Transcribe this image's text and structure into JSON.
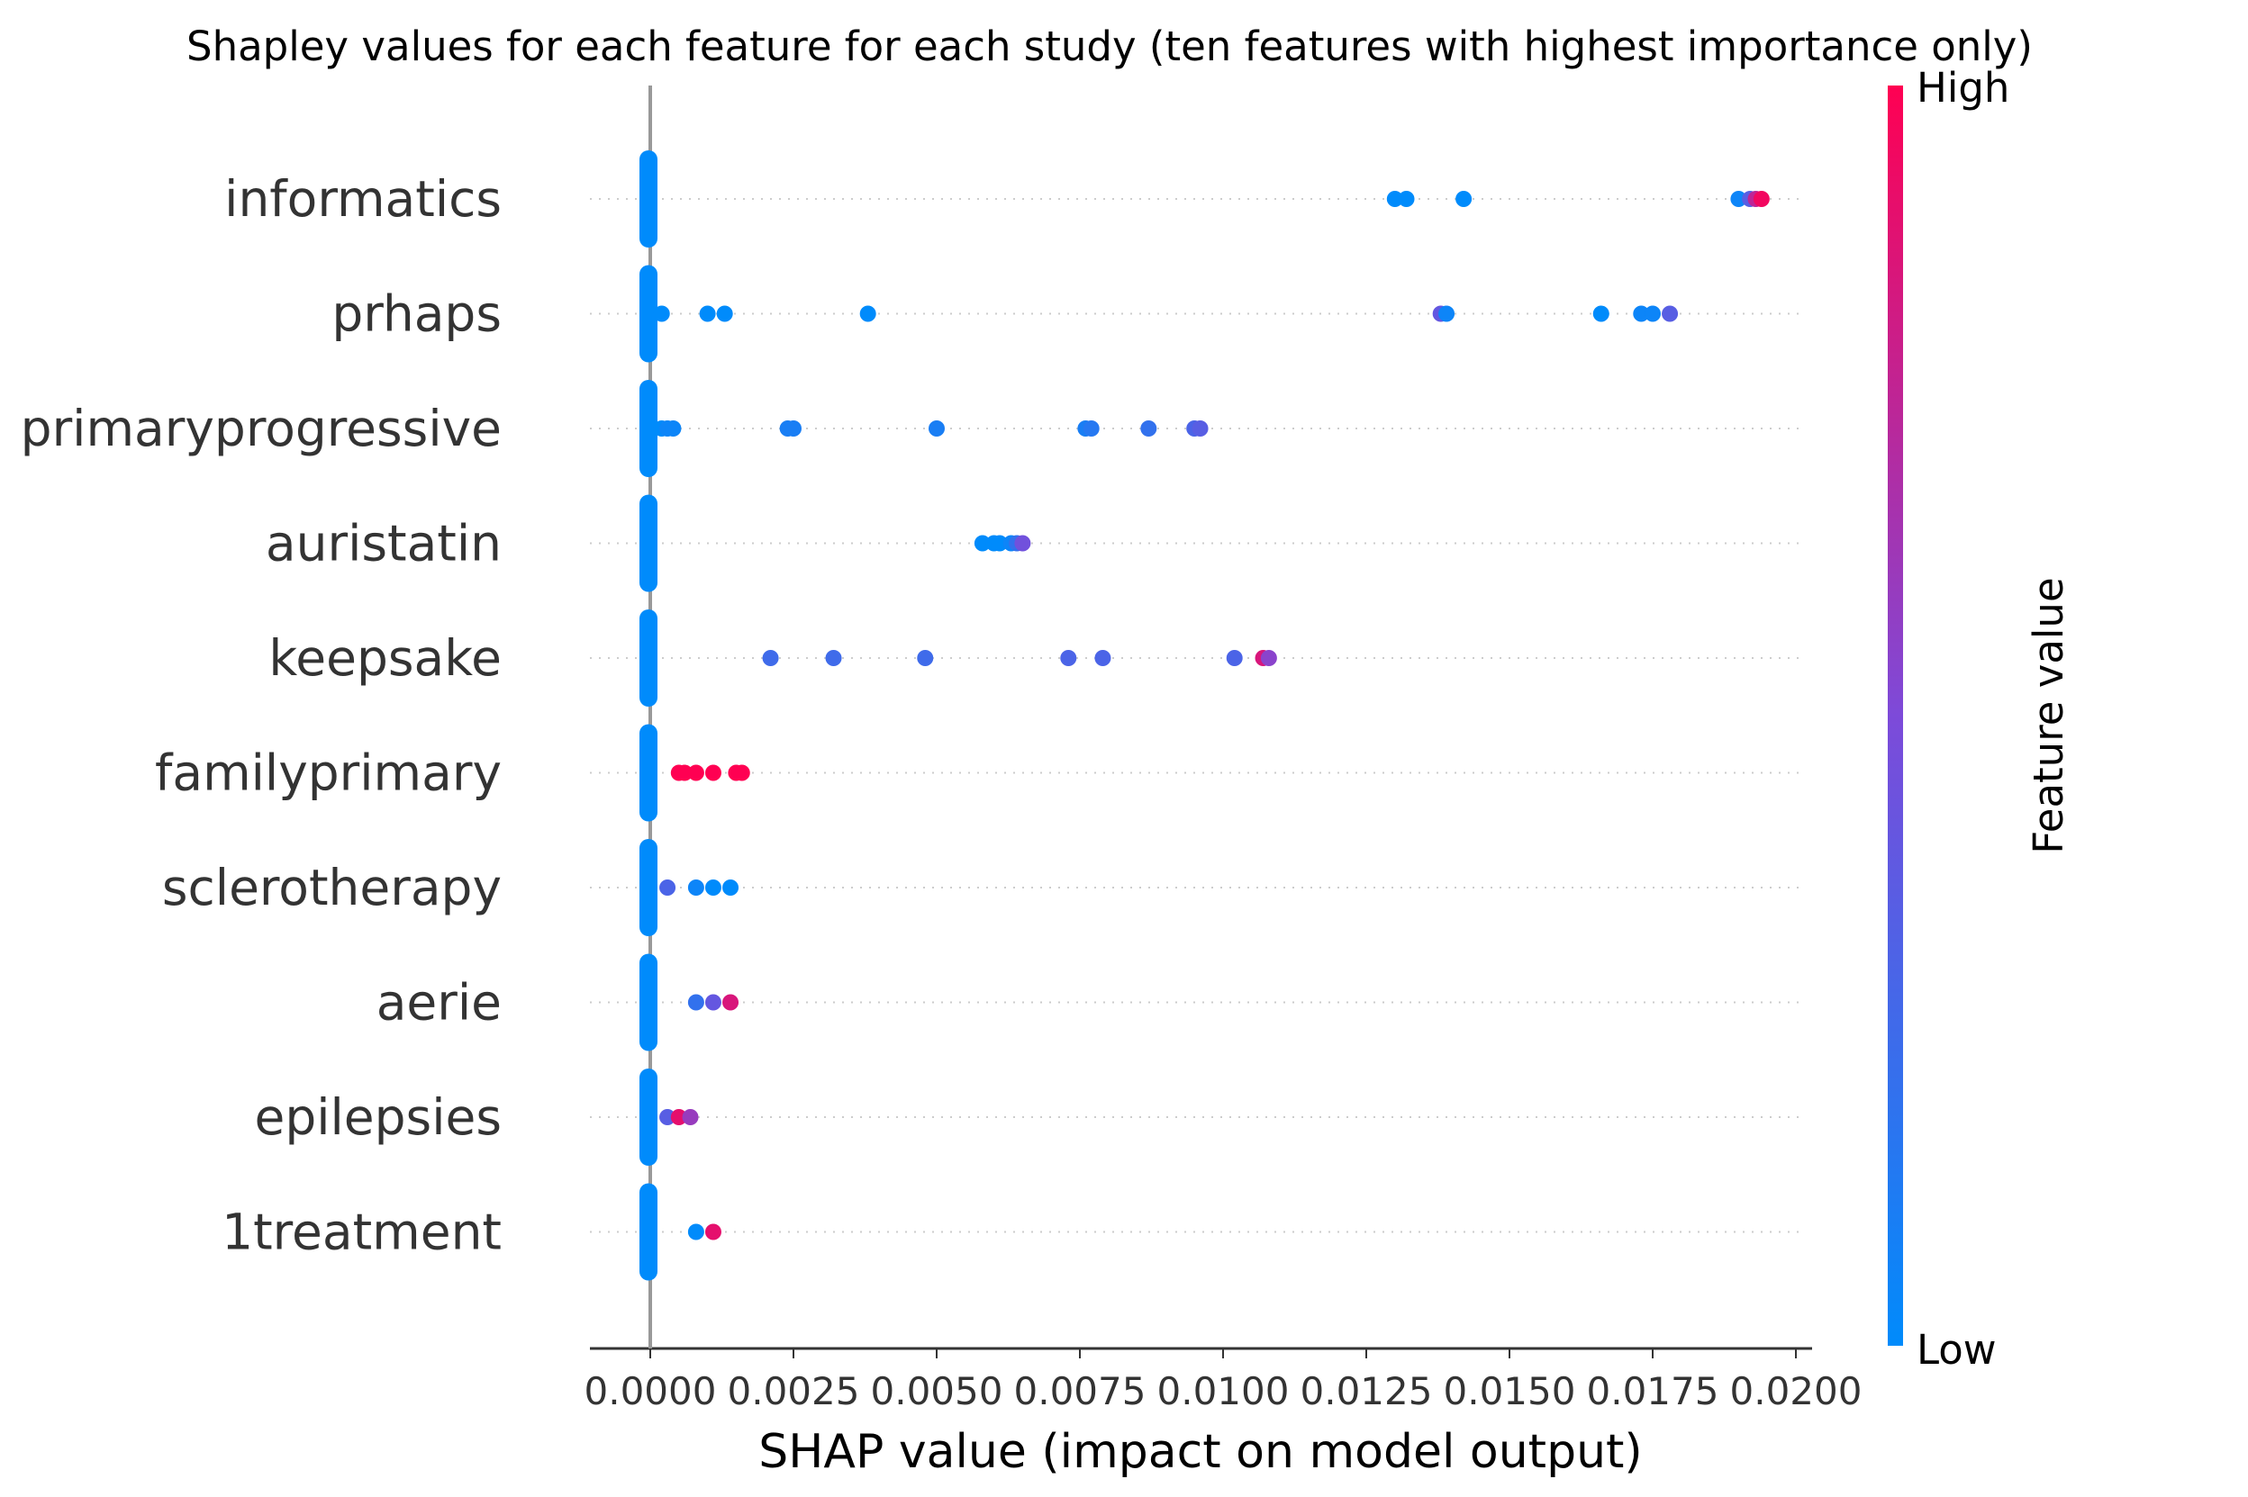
{
  "chart_data": {
    "type": "scatter",
    "title": "Shapley values for each feature for each study (ten features with highest importance only)",
    "xlabel": "SHAP value (impact on model output)",
    "xlim": [
      -0.00105,
      0.0203
    ],
    "x_ticks": [
      "0.0000",
      "0.0025",
      "0.0050",
      "0.0075",
      "0.0100",
      "0.0125",
      "0.0150",
      "0.0175",
      "0.0200"
    ],
    "x_tick_values": [
      0,
      0.0025,
      0.005,
      0.0075,
      0.01,
      0.0125,
      0.015,
      0.0175,
      0.02
    ],
    "grid": "horizontal dotted",
    "colorbar": {
      "label": "Feature value",
      "high_label": "High",
      "low_label": "Low",
      "high_color": "#ff0052",
      "low_color": "#008bfb"
    },
    "features": [
      {
        "name": "informatics",
        "points": [
          {
            "x": 0.013,
            "v": 0.0
          },
          {
            "x": 0.0132,
            "v": 0.0
          },
          {
            "x": 0.0142,
            "v": 0.0
          },
          {
            "x": 0.019,
            "v": 0.05
          },
          {
            "x": 0.0192,
            "v": 0.35
          },
          {
            "x": 0.0193,
            "v": 0.75
          },
          {
            "x": 0.0194,
            "v": 0.95
          }
        ]
      },
      {
        "name": "prhaps",
        "points": [
          {
            "x": 0.0002,
            "v": 0.0
          },
          {
            "x": 0.001,
            "v": 0.0
          },
          {
            "x": 0.0013,
            "v": 0.0
          },
          {
            "x": 0.0038,
            "v": 0.0
          },
          {
            "x": 0.0138,
            "v": 0.4
          },
          {
            "x": 0.0139,
            "v": 0.05
          },
          {
            "x": 0.0166,
            "v": 0.0
          },
          {
            "x": 0.0173,
            "v": 0.05
          },
          {
            "x": 0.0175,
            "v": 0.05
          },
          {
            "x": 0.0178,
            "v": 0.35
          }
        ]
      },
      {
        "name": "primaryprogressive",
        "points": [
          {
            "x": 0.0002,
            "v": 0.0
          },
          {
            "x": 0.0003,
            "v": 0.05
          },
          {
            "x": 0.0004,
            "v": 0.05
          },
          {
            "x": 0.0024,
            "v": 0.1
          },
          {
            "x": 0.0025,
            "v": 0.1
          },
          {
            "x": 0.005,
            "v": 0.1
          },
          {
            "x": 0.0076,
            "v": 0.1
          },
          {
            "x": 0.0077,
            "v": 0.15
          },
          {
            "x": 0.0087,
            "v": 0.2
          },
          {
            "x": 0.0095,
            "v": 0.3
          },
          {
            "x": 0.0096,
            "v": 0.35
          }
        ]
      },
      {
        "name": "auristatin",
        "points": [
          {
            "x": 0.0058,
            "v": 0.0
          },
          {
            "x": 0.006,
            "v": 0.0
          },
          {
            "x": 0.0061,
            "v": 0.0
          },
          {
            "x": 0.0063,
            "v": 0.05
          },
          {
            "x": 0.0064,
            "v": 0.2
          },
          {
            "x": 0.0065,
            "v": 0.45
          }
        ]
      },
      {
        "name": "keepsake",
        "points": [
          {
            "x": 0.0021,
            "v": 0.25
          },
          {
            "x": 0.0032,
            "v": 0.25
          },
          {
            "x": 0.0048,
            "v": 0.25
          },
          {
            "x": 0.0073,
            "v": 0.3
          },
          {
            "x": 0.0079,
            "v": 0.3
          },
          {
            "x": 0.0102,
            "v": 0.3
          },
          {
            "x": 0.0107,
            "v": 0.85
          },
          {
            "x": 0.0108,
            "v": 0.55
          }
        ]
      },
      {
        "name": "familyprimary",
        "points": [
          {
            "x": 0.0005,
            "v": 1.0
          },
          {
            "x": 0.0006,
            "v": 1.0
          },
          {
            "x": 0.0008,
            "v": 1.0
          },
          {
            "x": 0.0011,
            "v": 1.0
          },
          {
            "x": 0.0015,
            "v": 1.0
          },
          {
            "x": 0.0016,
            "v": 1.0
          }
        ]
      },
      {
        "name": "sclerotherapy",
        "points": [
          {
            "x": 0.0003,
            "v": 0.3
          },
          {
            "x": 0.0008,
            "v": 0.05
          },
          {
            "x": 0.0011,
            "v": 0.0
          },
          {
            "x": 0.0014,
            "v": 0.0
          }
        ]
      },
      {
        "name": "aerie",
        "points": [
          {
            "x": 0.0008,
            "v": 0.2
          },
          {
            "x": 0.0011,
            "v": 0.4
          },
          {
            "x": 0.0014,
            "v": 0.85
          }
        ]
      },
      {
        "name": "epilepsies",
        "points": [
          {
            "x": 0.0003,
            "v": 0.35
          },
          {
            "x": 0.0005,
            "v": 0.9
          },
          {
            "x": 0.0007,
            "v": 0.6
          }
        ]
      },
      {
        "name": "1treatment",
        "points": [
          {
            "x": 0.0008,
            "v": 0.0
          },
          {
            "x": 0.0011,
            "v": 0.9
          }
        ]
      }
    ]
  }
}
